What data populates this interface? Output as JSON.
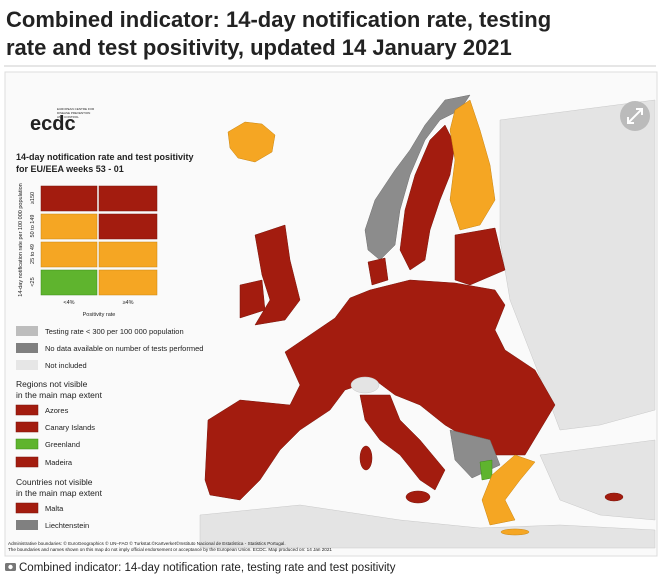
{
  "header": {
    "title_lines": [
      "Combined indicator: 14-day notification rate, testing",
      "rate and test positivity, updated 14 January 2021"
    ]
  },
  "logo": {
    "name": "ecdc",
    "subtitle_lines": [
      "EUROPEAN CENTRE FOR",
      "DISEASE PREVENTION",
      "AND CONTROL"
    ]
  },
  "legend": {
    "title_lines": [
      "14-day notification rate and test positivity",
      "for EU/EEA weeks 53 - 01"
    ],
    "matrix": {
      "y_axis_label": "14-day notification rate per 100 000 population",
      "row_labels": [
        "≥150",
        "50 to 149",
        "25 to 49",
        "<25"
      ],
      "col_labels": [
        "<4%",
        "≥4%"
      ],
      "x_axis_label": "Positivity rate"
    },
    "items": [
      "Testing rate < 300 per 100 000 population",
      "No data available on number of tests performed",
      "Not included"
    ],
    "regions_heading_lines": [
      "Regions not visible",
      "in the main map extent"
    ],
    "regions": [
      "Azores",
      "Canary Islands",
      "Greenland",
      "Madeira"
    ],
    "countries_heading_lines": [
      "Countries not visible",
      "in the main map extent"
    ],
    "countries": [
      "Malta",
      "Liechtenstein"
    ]
  },
  "footer": [
    "Administrative boundaries: © EuroGeographics © UN–FAO © Turkstat.©Kartverket©Instituto Nacional de Estatística - Statistics Portugal.",
    "The boundaries and names shown on this map do not imply official endorsement or acceptance by the European Union. ECDC. Map produced on: 14 Jan 2021"
  ],
  "caption": "Combined indicator: 14-day notification rate, testing rate and test positivity"
}
